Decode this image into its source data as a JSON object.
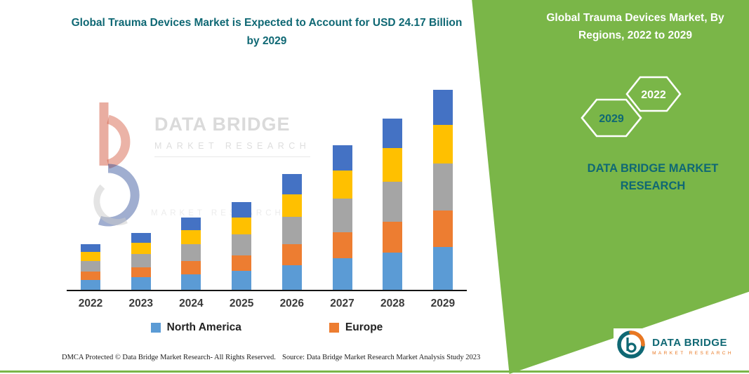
{
  "colors": {
    "green": "#7ab648",
    "teal": "#0f6874",
    "brand_orange": "#e87722"
  },
  "header": {
    "left_title": "Global Trauma Devices Market is Expected to Account for USD 24.17 Billion by 2029"
  },
  "panel": {
    "title": "Global Trauma Devices Market, By Regions, 2022 to 2029",
    "hex_left_year": "2029",
    "hex_right_year": "2022",
    "brand_line1": "DATA BRIDGE MARKET",
    "brand_line2": "RESEARCH"
  },
  "watermark": {
    "line1": "DATA BRIDGE",
    "line2": "MARKET RESEARCH"
  },
  "footer": {
    "dmca": "DMCA Protected © Data Bridge Market Research-  All Rights Reserved.",
    "source": "Source: Data Bridge Market Research  Market Analysis Study 2023"
  },
  "brand_logo": {
    "name": "DATA BRIDGE",
    "sub": "MARKET RESEARCH"
  },
  "chart_data": {
    "type": "bar",
    "stacked": true,
    "title": "Global Trauma Devices Market is Expected to Account for USD 24.17 Billion by 2029",
    "unit": "USD Billion",
    "categories": [
      "2022",
      "2023",
      "2024",
      "2025",
      "2026",
      "2027",
      "2028",
      "2029"
    ],
    "series": [
      {
        "name": "North America",
        "color": "#5B9BD5",
        "values": [
          1.2,
          1.5,
          1.9,
          2.3,
          3.0,
          3.8,
          4.5,
          5.2
        ]
      },
      {
        "name": "Europe",
        "color": "#ED7D31",
        "values": [
          1.0,
          1.25,
          1.55,
          1.9,
          2.5,
          3.15,
          3.7,
          4.35
        ]
      },
      {
        "name": "(unlabeled gray segment)",
        "color": "#A5A5A5",
        "values": [
          1.3,
          1.6,
          2.05,
          2.5,
          3.3,
          4.1,
          4.85,
          5.7
        ]
      },
      {
        "name": "(unlabeled yellow segment)",
        "color": "#FFC000",
        "values": [
          1.05,
          1.35,
          1.7,
          2.05,
          2.75,
          3.4,
          4.05,
          4.7
        ]
      },
      {
        "name": "(unlabeled dark blue segment)",
        "color": "#4472C4",
        "values": [
          0.95,
          1.2,
          1.5,
          1.85,
          2.45,
          3.05,
          3.6,
          4.22
        ]
      }
    ],
    "totals": [
      5.5,
      6.9,
      8.7,
      10.6,
      14.0,
      17.5,
      20.7,
      24.17
    ],
    "legend_visible": [
      "North America",
      "Europe"
    ],
    "ylim": [
      0,
      25
    ],
    "y_axis_shown": false,
    "grid": false,
    "legend_position": "bottom"
  }
}
